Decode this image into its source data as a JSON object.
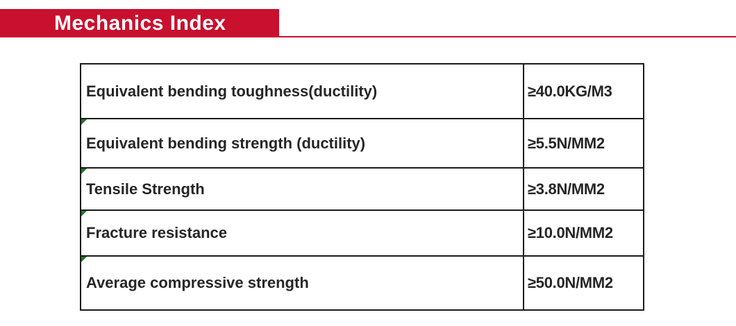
{
  "header": {
    "title": "Mechanics Index"
  },
  "colors": {
    "accent_red": "#C9102E",
    "table_border": "#1A1A1A",
    "marker_green": "#1E7A1E",
    "text": "#262626"
  },
  "table": {
    "rows": [
      {
        "label": "Equivalent bending toughness(ductility)",
        "value": "≥40.0KG/M3",
        "marker": false
      },
      {
        "label": "Equivalent bending strength (ductility)",
        "value": "≥5.5N/MM2",
        "marker": true
      },
      {
        "label": "Tensile Strength",
        "value": "≥3.8N/MM2",
        "marker": true
      },
      {
        "label": "Fracture resistance",
        "value": "≥10.0N/MM2",
        "marker": true
      },
      {
        "label": "Average compressive strength",
        "value": "≥50.0N/MM2",
        "marker": true
      }
    ]
  }
}
